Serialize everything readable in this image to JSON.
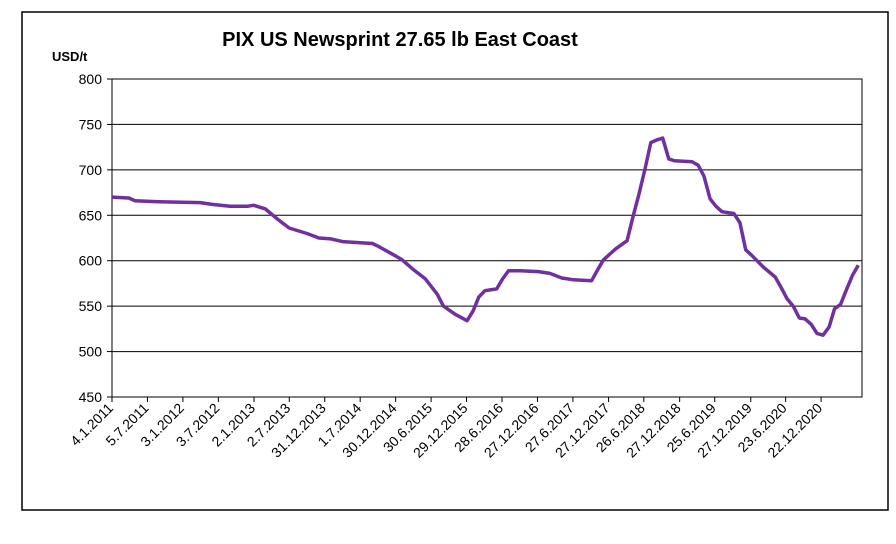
{
  "chart_data": {
    "type": "line",
    "title": "PIX US Newsprint 27.65 lb East Coast",
    "y_label": "USD/t",
    "x": [
      "4.1.2011",
      "1.4.2011",
      "1.5.2011",
      "1.9.2011",
      "1.4.2012",
      "1.6.2012",
      "1.9.2012",
      "1.12.2012",
      "1.1.2013",
      "1.3.2013",
      "1.5.2013",
      "1.7.2013",
      "1.10.2013",
      "1.12.2013",
      "1.2.2014",
      "1.4.2014",
      "1.9.2014",
      "1.10.2014",
      "1.1.2015",
      "1.2.2015",
      "1.4.2015",
      "1.6.2015",
      "1.8.2015",
      "1.9.2015",
      "1.11.2015",
      "1.1.2016",
      "1.2.2016",
      "1.3.2016",
      "1.4.2016",
      "1.6.2016",
      "1.7.2016",
      "1.8.2016",
      "1.10.2016",
      "1.1.2017",
      "1.3.2017",
      "1.5.2017",
      "1.7.2017",
      "1.10.2017",
      "1.11.2017",
      "1.12.2017",
      "1.2.2018",
      "1.4.2018",
      "1.5.2018",
      "1.6.2018",
      "1.7.2018",
      "1.8.2018",
      "1.9.2018",
      "1.10.2018",
      "1.11.2018",
      "1.12.2018",
      "1.3.2019",
      "1.4.2019",
      "1.5.2019",
      "1.6.2019",
      "1.7.2019",
      "1.8.2019",
      "1.10.2019",
      "1.11.2019",
      "1.12.2019",
      "1.1.2020",
      "1.3.2020",
      "1.5.2020",
      "1.6.2020",
      "1.7.2020",
      "1.8.2020",
      "1.9.2020",
      "1.10.2020",
      "1.11.2020",
      "1.12.2020",
      "1.1.2021",
      "1.2.2021",
      "1.3.2021",
      "1.4.2021",
      "1.5.2021",
      "1.6.2021",
      "1.7.2021"
    ],
    "series": [
      {
        "color": "#7030a0",
        "values": [
          670,
          669,
          666,
          665,
          664,
          662,
          660,
          660,
          661,
          657,
          646,
          636,
          630,
          625,
          624,
          621,
          619,
          616,
          605,
          601,
          590,
          580,
          563,
          550,
          541,
          534,
          545,
          560,
          567,
          569,
          580,
          589,
          589,
          588,
          586,
          581,
          579,
          578,
          590,
          601,
          613,
          622,
          648,
          673,
          700,
          730,
          733,
          735,
          712,
          710,
          709,
          705,
          693,
          668,
          660,
          654,
          652,
          642,
          612,
          606,
          593,
          582,
          570,
          558,
          550,
          537,
          536,
          530,
          520,
          518,
          527,
          547,
          552,
          568,
          584,
          595
        ]
      }
    ],
    "xlim": [
      "4.1.2011",
      "20.7.2021"
    ],
    "xticks": [
      "4.1.2011",
      "5.7.2011",
      "3.1.2012",
      "3.7.2012",
      "2.1.2013",
      "2.7.2013",
      "31.12.2013",
      "1.7.2014",
      "30.12.2014",
      "30.6.2015",
      "29.12.2015",
      "28.6.2016",
      "27.12.2016",
      "27.6.2017",
      "27.12.2017",
      "26.6.2018",
      "27.12.2018",
      "25.6.2019",
      "27.12.2019",
      "23.6.2020",
      "22.12.2020"
    ],
    "ylim": [
      450,
      800
    ],
    "yticks": [
      450,
      500,
      550,
      600,
      650,
      700,
      750,
      800
    ],
    "grid": true
  }
}
